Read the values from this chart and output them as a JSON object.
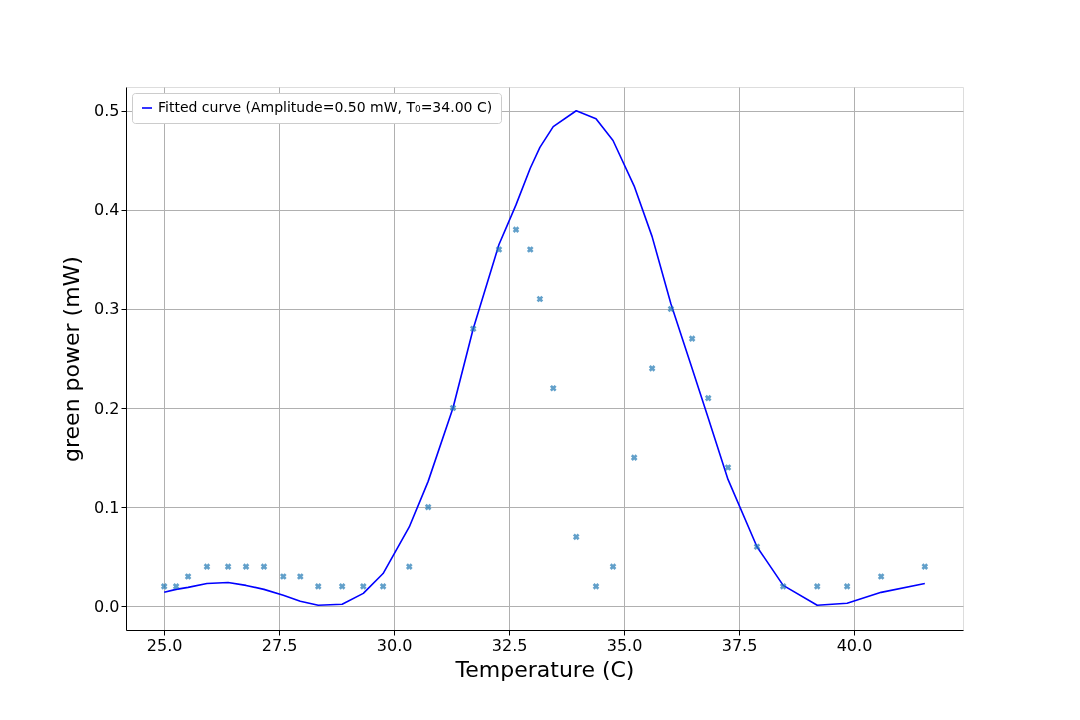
{
  "chart_data": {
    "type": "line",
    "xlabel": "Temperature (C)",
    "ylabel": "green power (mW)",
    "x": [
      25.0,
      25.26,
      25.52,
      25.93,
      26.39,
      26.78,
      27.17,
      27.59,
      27.96,
      28.35,
      28.87,
      29.33,
      29.76,
      30.33,
      30.74,
      31.28,
      31.72,
      32.28,
      32.65,
      32.96,
      33.17,
      33.46,
      33.96,
      34.39,
      34.76,
      35.22,
      35.61,
      36.02,
      36.48,
      36.83,
      37.26,
      37.89,
      38.46,
      39.2,
      39.85,
      40.59,
      41.54
    ],
    "series": [
      {
        "name": "Fitted curve (Amplitude=0.50 mW, T₀=34.00 C)",
        "color": "#0000ff",
        "marker": "none",
        "values": [
          0.014,
          0.017,
          0.019,
          0.023,
          0.024,
          0.021,
          0.017,
          0.011,
          0.005,
          0.001,
          0.002,
          0.013,
          0.033,
          0.08,
          0.126,
          0.2,
          0.28,
          0.365,
          0.405,
          0.442,
          0.463,
          0.484,
          0.5,
          0.492,
          0.47,
          0.424,
          0.373,
          0.305,
          0.24,
          0.19,
          0.128,
          0.06,
          0.021,
          0.001,
          0.003,
          0.014,
          0.023
        ]
      },
      {
        "type": "scatter",
        "color": "#1f77b4",
        "marker": "cross",
        "values": [
          0.02,
          0.02,
          0.03,
          0.04,
          0.04,
          0.04,
          0.04,
          0.03,
          0.03,
          0.02,
          0.02,
          0.02,
          0.02,
          0.04,
          0.1,
          0.2,
          0.28,
          0.36,
          0.38,
          0.36,
          0.31,
          0.22,
          0.07,
          0.02,
          0.04,
          0.15,
          0.24,
          0.3,
          0.27,
          0.21,
          0.14,
          0.06,
          0.02,
          0.02,
          0.02,
          0.03,
          0.04
        ]
      }
    ],
    "xlim": [
      24.17,
      42.37
    ],
    "ylim": [
      -0.024,
      0.524
    ],
    "xticks": [
      {
        "value": 25,
        "label": "25.0"
      },
      27.5,
      {
        "value": 30,
        "label": "30.0"
      },
      32.5,
      {
        "value": 35,
        "label": "35.0"
      },
      37.5,
      {
        "value": 40,
        "label": "40.0"
      }
    ],
    "yticks": [
      {
        "value": 0,
        "label": "0.0"
      },
      0.1,
      0.2,
      0.3,
      0.4,
      0.5
    ],
    "grid": true,
    "legend": "top left"
  }
}
